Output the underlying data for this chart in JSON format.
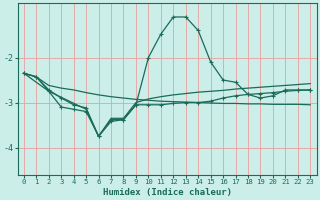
{
  "xlabel": "Humidex (Indice chaleur)",
  "background_color": "#cceee8",
  "grid_color": "#e8a0a0",
  "line_color": "#1a6b5a",
  "xlim": [
    -0.5,
    23.5
  ],
  "ylim": [
    -4.6,
    -0.8
  ],
  "yticks": [
    -4,
    -3,
    -2
  ],
  "xticks": [
    0,
    1,
    2,
    3,
    4,
    5,
    6,
    7,
    8,
    9,
    10,
    11,
    12,
    13,
    14,
    15,
    16,
    17,
    18,
    19,
    20,
    21,
    22,
    23
  ],
  "line1_x": [
    0,
    1,
    2,
    3,
    4,
    5,
    6,
    7,
    8,
    9,
    10,
    11,
    12,
    13,
    14,
    15,
    16,
    17,
    18,
    19,
    20,
    21,
    22,
    23
  ],
  "line1_y": [
    -2.35,
    -2.43,
    -2.62,
    -2.68,
    -2.72,
    -2.78,
    -2.83,
    -2.87,
    -2.9,
    -2.93,
    -2.95,
    -2.97,
    -2.98,
    -2.99,
    -3.0,
    -3.01,
    -3.02,
    -3.02,
    -3.03,
    -3.03,
    -3.04,
    -3.04,
    -3.04,
    -3.05
  ],
  "line2_x": [
    0,
    1,
    2,
    3,
    4,
    5,
    6,
    7,
    8,
    9,
    10,
    11,
    12,
    13,
    14,
    15,
    16,
    17,
    18,
    19,
    20,
    21,
    22,
    23
  ],
  "line2_y": [
    -2.35,
    -2.43,
    -2.75,
    -3.1,
    -3.15,
    -3.2,
    -3.75,
    -3.42,
    -3.38,
    -3.05,
    -2.0,
    -1.48,
    -1.1,
    -1.1,
    -1.4,
    -2.1,
    -2.5,
    -2.55,
    -2.82,
    -2.9,
    -2.85,
    -2.72,
    -2.72,
    -2.72
  ],
  "line3_x": [
    0,
    1,
    2,
    3,
    4,
    5,
    6,
    7,
    8,
    9,
    10,
    11,
    12,
    13,
    14,
    15,
    16,
    17,
    18,
    19,
    20,
    21,
    22,
    23
  ],
  "line3_y": [
    -2.35,
    -2.43,
    -2.72,
    -2.9,
    -3.05,
    -3.12,
    -3.75,
    -3.38,
    -3.38,
    -3.05,
    -3.05,
    -3.05,
    -3.02,
    -3.0,
    -3.0,
    -2.97,
    -2.9,
    -2.85,
    -2.82,
    -2.8,
    -2.78,
    -2.75,
    -2.73,
    -2.72
  ],
  "line4_x": [
    0,
    2,
    5,
    6,
    7,
    8,
    9,
    10,
    11,
    12,
    13,
    14,
    15,
    16,
    17,
    18,
    19,
    20,
    21,
    22,
    23
  ],
  "line4_y": [
    -2.35,
    -2.75,
    -3.15,
    -3.75,
    -3.35,
    -3.35,
    -3.0,
    -2.92,
    -2.87,
    -2.83,
    -2.8,
    -2.77,
    -2.75,
    -2.73,
    -2.7,
    -2.68,
    -2.66,
    -2.64,
    -2.62,
    -2.6,
    -2.58
  ]
}
